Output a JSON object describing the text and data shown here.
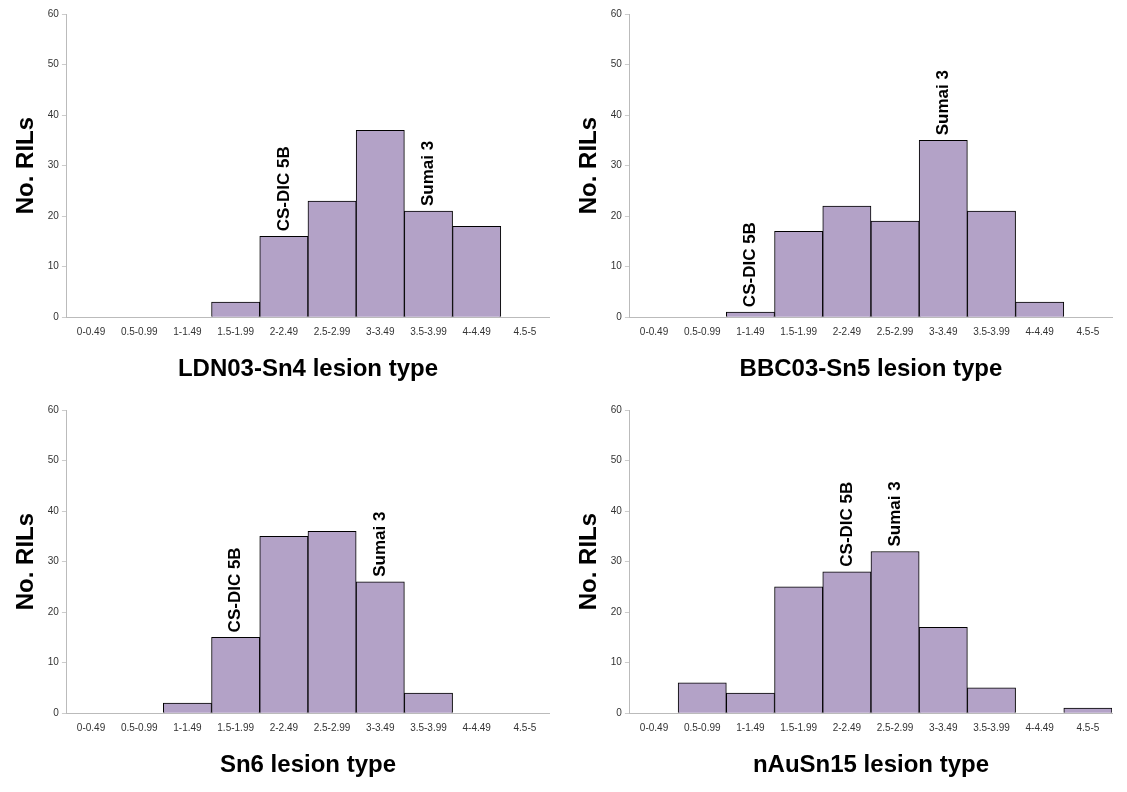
{
  "chart_data": [
    {
      "type": "bar",
      "xlabel": "LDN03-Sn4 lesion type",
      "ylabel": "No. RILs",
      "categories": [
        "0-0.49",
        "0.5-0.99",
        "1-1.49",
        "1.5-1.99",
        "2-2.49",
        "2.5-2.99",
        "3-3.49",
        "3.5-3.99",
        "4-4.49",
        "4.5-5"
      ],
      "values": [
        0,
        0,
        0,
        3,
        16,
        23,
        37,
        21,
        18,
        0
      ],
      "color": "#b3a2c7",
      "ylim": [
        0,
        60
      ],
      "yticks": [
        0,
        10,
        20,
        30,
        40,
        50,
        60
      ],
      "grid": false,
      "annotations": [
        {
          "text": "CS-DIC 5B",
          "x": "2-2.49",
          "y": 16
        },
        {
          "text": "Sumai 3",
          "x": "3.5-3.99",
          "y": 21
        }
      ]
    },
    {
      "type": "bar",
      "xlabel": "BBC03-Sn5 lesion type",
      "ylabel": "No. RILs",
      "categories": [
        "0-0.49",
        "0.5-0.99",
        "1-1.49",
        "1.5-1.99",
        "2-2.49",
        "2.5-2.99",
        "3-3.49",
        "3.5-3.99",
        "4-4.49",
        "4.5-5"
      ],
      "values": [
        0,
        0,
        1,
        17,
        22,
        19,
        35,
        21,
        3,
        0
      ],
      "color": "#b3a2c7",
      "ylim": [
        0,
        60
      ],
      "yticks": [
        0,
        10,
        20,
        30,
        40,
        50,
        60
      ],
      "grid": false,
      "annotations": [
        {
          "text": "CS-DIC 5B",
          "x": "1-1.49",
          "y": 1
        },
        {
          "text": "Sumai 3",
          "x": "3-3.49",
          "y": 35
        }
      ]
    },
    {
      "type": "bar",
      "xlabel": "Sn6 lesion type",
      "ylabel": "No. RILs",
      "categories": [
        "0-0.49",
        "0.5-0.99",
        "1-1.49",
        "1.5-1.99",
        "2-2.49",
        "2.5-2.99",
        "3-3.49",
        "3.5-3.99",
        "4-4.49",
        "4.5-5"
      ],
      "values": [
        0,
        0,
        2,
        15,
        35,
        36,
        26,
        4,
        0,
        0
      ],
      "color": "#b3a2c7",
      "ylim": [
        0,
        60
      ],
      "yticks": [
        0,
        10,
        20,
        30,
        40,
        50,
        60
      ],
      "grid": false,
      "annotations": [
        {
          "text": "CS-DIC 5B",
          "x": "1.5-1.99",
          "y": 15
        },
        {
          "text": "Sumai 3",
          "x": "3-3.49",
          "y": 26
        }
      ]
    },
    {
      "type": "bar",
      "xlabel": "nAuSn15 lesion type",
      "ylabel": "No. RILs",
      "categories": [
        "0-0.49",
        "0.5-0.99",
        "1-1.49",
        "1.5-1.99",
        "2-2.49",
        "2.5-2.99",
        "3-3.49",
        "3.5-3.99",
        "4-4.49",
        "4.5-5"
      ],
      "values": [
        0,
        6,
        4,
        25,
        28,
        32,
        17,
        5,
        0,
        1
      ],
      "color": "#b3a2c7",
      "ylim": [
        0,
        60
      ],
      "yticks": [
        0,
        10,
        20,
        30,
        40,
        50,
        60
      ],
      "grid": false,
      "annotations": [
        {
          "text": "CS-DIC 5B",
          "x": "2-2.49",
          "y": 28
        },
        {
          "text": "Sumai 3",
          "x": "2.5-2.99",
          "y": 32
        }
      ]
    }
  ]
}
